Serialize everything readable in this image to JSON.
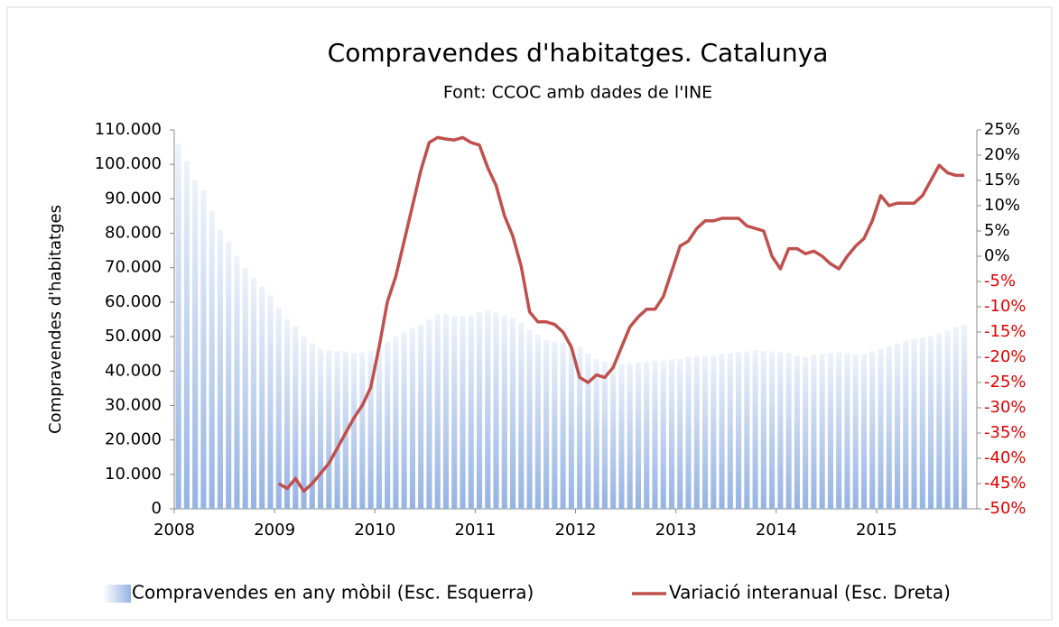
{
  "chart_data": {
    "type": "bar_line",
    "title": "Compravendes d'habitatges. Catalunya",
    "subtitle": "Font:  CCOC amb dades de l'INE",
    "y_label": "Compravendes d'habitatges",
    "categories": [
      "2008",
      null,
      null,
      null,
      null,
      null,
      null,
      null,
      null,
      null,
      null,
      null,
      "2009",
      null,
      null,
      null,
      null,
      null,
      null,
      null,
      null,
      null,
      null,
      null,
      "2010",
      null,
      null,
      null,
      null,
      null,
      null,
      null,
      null,
      null,
      null,
      null,
      "2011",
      null,
      null,
      null,
      null,
      null,
      null,
      null,
      null,
      null,
      null,
      null,
      "2012",
      null,
      null,
      null,
      null,
      null,
      null,
      null,
      null,
      null,
      null,
      null,
      "2013",
      null,
      null,
      null,
      null,
      null,
      null,
      null,
      null,
      null,
      null,
      null,
      "2014",
      null,
      null,
      null,
      null,
      null,
      null,
      null,
      null,
      null,
      null,
      null,
      "2015",
      null,
      null,
      null,
      null,
      null,
      null,
      null,
      null,
      null,
      null
    ],
    "series": [
      {
        "name": "Compravendes en any mòbil (Esc. Esquerra)",
        "type": "bar",
        "axis": "y",
        "color": "#95b3e3",
        "values": [
          106000,
          101000,
          95500,
          92500,
          86500,
          81000,
          77500,
          73500,
          70000,
          67000,
          64500,
          62000,
          58500,
          55000,
          53000,
          50000,
          48000,
          46500,
          46000,
          45800,
          45700,
          45300,
          45300,
          45800,
          47000,
          48500,
          50000,
          51500,
          52500,
          53500,
          55000,
          56500,
          56500,
          56000,
          56000,
          56200,
          57000,
          57500,
          57000,
          56000,
          55500,
          54000,
          52000,
          50500,
          49000,
          48500,
          48500,
          48200,
          47000,
          45000,
          43500,
          42800,
          42500,
          42200,
          42300,
          42500,
          42800,
          43000,
          43000,
          43300,
          43500,
          44200,
          44500,
          44200,
          44500,
          45000,
          45200,
          45500,
          45700,
          46000,
          45800,
          45700,
          45500,
          45300,
          44500,
          44000,
          44800,
          45000,
          45200,
          45400,
          45200,
          45000,
          45000,
          45800,
          46500,
          47200,
          48000,
          48800,
          49300,
          49800,
          50200,
          50800,
          51800,
          52800,
          53300
        ]
      },
      {
        "name": "Variació interanual (Esc. Dreta)",
        "type": "line",
        "axis": "y2",
        "color": "#c0504d",
        "values": [
          null,
          null,
          null,
          null,
          null,
          null,
          null,
          null,
          null,
          null,
          null,
          null,
          -45,
          -46,
          -44,
          -46.5,
          -45,
          -43,
          -41,
          -38,
          -35,
          -32,
          -29.5,
          -26,
          -18,
          -9,
          -4,
          3,
          10,
          17,
          22.5,
          23.5,
          23.2,
          23,
          23.5,
          22.5,
          22,
          17.5,
          14,
          8,
          4,
          -2,
          -11,
          -13,
          -13,
          -13.5,
          -15,
          -18,
          -24,
          -25,
          -23.5,
          -24,
          -22,
          -18,
          -14,
          -12,
          -10.5,
          -10.5,
          -8,
          -3,
          2,
          3,
          5.5,
          7,
          7,
          7.5,
          7.5,
          7.5,
          6,
          5.5,
          5,
          0,
          -2.5,
          1.5,
          1.5,
          0.5,
          1,
          0,
          -1.5,
          -2.5,
          0,
          2,
          3.5,
          7,
          12,
          10,
          10.5,
          10.5,
          10.5,
          12,
          15,
          18,
          16.5,
          16,
          16
        ]
      }
    ],
    "ylim": [
      0,
      110000
    ],
    "yticks": [
      0,
      {
        "value": 10000,
        "label": "10.000"
      },
      {
        "value": 20000,
        "label": "20.000"
      },
      {
        "value": 30000,
        "label": "30.000"
      },
      {
        "value": 40000,
        "label": "40.000"
      },
      {
        "value": 50000,
        "label": "50.000"
      },
      {
        "value": 60000,
        "label": "60.000"
      },
      {
        "value": 70000,
        "label": "70.000"
      },
      {
        "value": 80000,
        "label": "80.000"
      },
      {
        "value": 90000,
        "label": "90.000"
      },
      {
        "value": 100000,
        "label": "100.000"
      },
      {
        "value": 110000,
        "label": "110.000"
      }
    ],
    "y2lim": [
      -50,
      25
    ],
    "y2ticks": [
      {
        "value": -50,
        "label": "-50%"
      },
      {
        "value": -45,
        "label": "-45%"
      },
      {
        "value": -40,
        "label": "-40%"
      },
      {
        "value": -35,
        "label": "-35%"
      },
      {
        "value": -30,
        "label": "-30%"
      },
      {
        "value": -25,
        "label": "-25%"
      },
      {
        "value": -20,
        "label": "-20%"
      },
      {
        "value": -15,
        "label": "-15%"
      },
      {
        "value": -10,
        "label": "-10%"
      },
      {
        "value": -5,
        "label": "-5%"
      },
      {
        "value": 0,
        "label": "0%"
      },
      {
        "value": 5,
        "label": "5%"
      },
      {
        "value": 10,
        "label": "10%"
      },
      {
        "value": 15,
        "label": "15%"
      },
      {
        "value": 20,
        "label": "20%"
      },
      {
        "value": 25,
        "label": "25%"
      }
    ],
    "negative_tick_color": "#e00000",
    "legend": "bottom"
  }
}
